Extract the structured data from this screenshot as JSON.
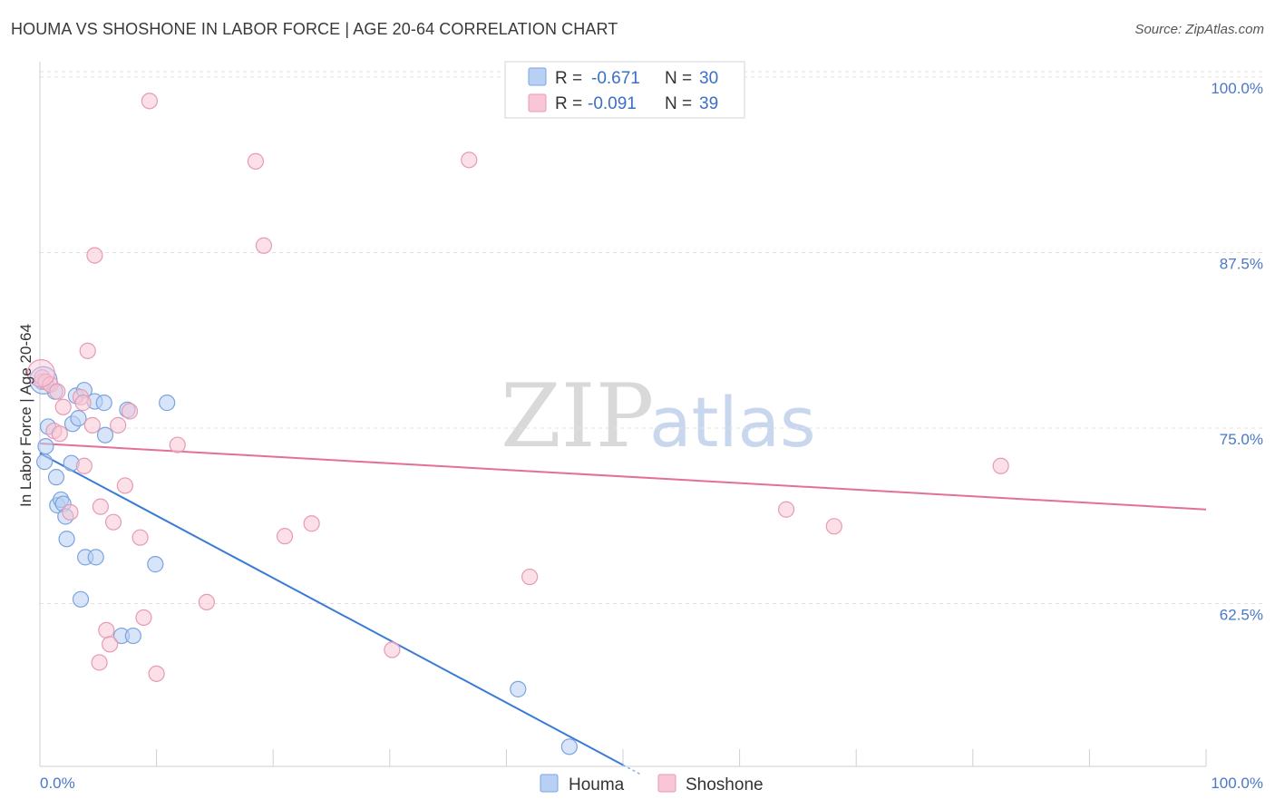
{
  "header": {
    "title": "HOUMA VS SHOSHONE IN LABOR FORCE | AGE 20-64 CORRELATION CHART",
    "source": "Source: ZipAtlas.com"
  },
  "watermark": {
    "zip": "ZIP",
    "atlas": "atlas"
  },
  "legend": {
    "rows": [
      {
        "r_label": "R =",
        "r_value": "-0.671",
        "n_label": "N =",
        "n_value": "30",
        "color": "#8fb4ec"
      },
      {
        "r_label": "R =",
        "r_value": "-0.091",
        "n_label": "N =",
        "n_value": "39",
        "color": "#f0a6c0"
      }
    ]
  },
  "colors": {
    "houma_fill": "#b8d0f4",
    "houma_stroke": "#7aa3e0",
    "houma_line": "#3a7bd5",
    "shoshone_fill": "#f8c6d6",
    "shoshone_stroke": "#e79ab4",
    "shoshone_line": "#e46f98",
    "grid": "#e2e2e2",
    "axis_label": "#4a78c8"
  },
  "chart_data": {
    "type": "scatter",
    "title": "HOUMA VS SHOSHONE IN LABOR FORCE | AGE 20-64 CORRELATION CHART",
    "xlabel": "",
    "ylabel": "In Labor Force | Age 20-64",
    "xlim": [
      0,
      100
    ],
    "ylim": [
      50.9,
      101.1
    ],
    "x_tick_labels": [
      "0.0%",
      "100.0%"
    ],
    "y_ticks": [
      100.0,
      87.5,
      75.0,
      62.5
    ],
    "y_tick_labels": [
      "100.0%",
      "87.5%",
      "75.0%",
      "62.5%"
    ],
    "grid": true,
    "legend_position": "bottom-center",
    "series": [
      {
        "name": "Houma",
        "points": [
          [
            0.2,
            78.3
          ],
          [
            0.4,
            72.6
          ],
          [
            0.5,
            73.7
          ],
          [
            0.7,
            75.1
          ],
          [
            1.3,
            77.6
          ],
          [
            1.4,
            71.5
          ],
          [
            1.5,
            69.5
          ],
          [
            1.8,
            69.9
          ],
          [
            2.0,
            69.6
          ],
          [
            2.2,
            68.7
          ],
          [
            2.3,
            67.1
          ],
          [
            2.7,
            72.5
          ],
          [
            2.8,
            75.3
          ],
          [
            3.1,
            77.3
          ],
          [
            3.3,
            75.7
          ],
          [
            3.5,
            62.8
          ],
          [
            3.8,
            77.7
          ],
          [
            3.9,
            65.8
          ],
          [
            4.7,
            76.9
          ],
          [
            4.8,
            65.8
          ],
          [
            5.5,
            76.8
          ],
          [
            5.6,
            74.5
          ],
          [
            7.0,
            60.2
          ],
          [
            7.5,
            76.3
          ],
          [
            8.0,
            60.2
          ],
          [
            9.9,
            65.3
          ],
          [
            10.9,
            76.8
          ],
          [
            41.0,
            56.4
          ],
          [
            45.4,
            52.3
          ],
          [
            0.3,
            78.4
          ]
        ],
        "trend": {
          "x": [
            0,
            50
          ],
          "y": [
            73.2,
            51.0
          ]
        }
      },
      {
        "name": "Shoshone",
        "points": [
          [
            0.2,
            78.6
          ],
          [
            0.5,
            78.3
          ],
          [
            0.9,
            78.1
          ],
          [
            1.2,
            74.8
          ],
          [
            1.5,
            77.6
          ],
          [
            1.7,
            74.6
          ],
          [
            2.0,
            76.5
          ],
          [
            2.6,
            69.0
          ],
          [
            3.5,
            77.2
          ],
          [
            3.7,
            76.8
          ],
          [
            3.8,
            72.3
          ],
          [
            4.1,
            80.5
          ],
          [
            4.5,
            75.2
          ],
          [
            4.7,
            87.3
          ],
          [
            5.1,
            58.3
          ],
          [
            5.2,
            69.4
          ],
          [
            5.7,
            60.6
          ],
          [
            6.0,
            59.6
          ],
          [
            6.3,
            68.3
          ],
          [
            6.7,
            75.2
          ],
          [
            7.3,
            70.9
          ],
          [
            7.7,
            76.2
          ],
          [
            8.6,
            67.2
          ],
          [
            8.9,
            61.5
          ],
          [
            9.4,
            98.3
          ],
          [
            10.0,
            57.5
          ],
          [
            11.8,
            73.8
          ],
          [
            14.3,
            62.6
          ],
          [
            18.5,
            94.0
          ],
          [
            19.2,
            88.0
          ],
          [
            21.0,
            67.3
          ],
          [
            23.3,
            68.2
          ],
          [
            30.2,
            59.2
          ],
          [
            36.8,
            94.1
          ],
          [
            42.0,
            64.4
          ],
          [
            64.0,
            69.2
          ],
          [
            68.1,
            68.0
          ],
          [
            82.4,
            72.3
          ],
          [
            0.1,
            78.9
          ]
        ],
        "trend": {
          "x": [
            0,
            100
          ],
          "y": [
            73.9,
            69.2
          ]
        }
      }
    ]
  },
  "bottom_legend": {
    "items": [
      {
        "label": "Houma"
      },
      {
        "label": "Shoshone"
      }
    ]
  }
}
